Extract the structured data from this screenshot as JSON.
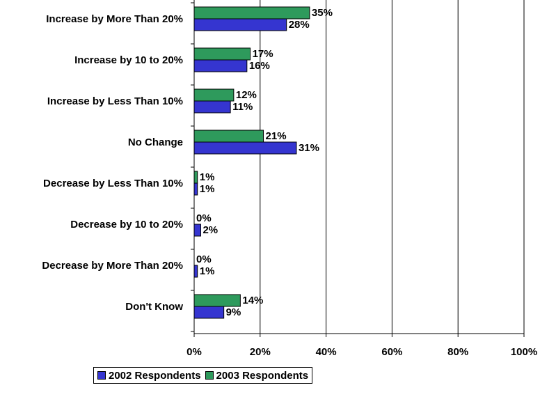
{
  "chart_data": {
    "type": "bar",
    "orientation": "horizontal",
    "title": "",
    "xlabel": "",
    "ylabel": "",
    "xlim": [
      0,
      100
    ],
    "x_tick_labels": [
      "0%",
      "20%",
      "40%",
      "60%",
      "80%",
      "100%"
    ],
    "grid": "vertical",
    "legend_position": "bottom",
    "categories": [
      "Increase by More Than 20%",
      "Increase by 10 to 20%",
      "Increase by Less Than 10%",
      "No Change",
      "Decrease by Less Than 10%",
      "Decrease by 10 to 20%",
      "Decrease by More Than 20%",
      "Don't Know"
    ],
    "series": [
      {
        "name": "2003 Respondents",
        "color": "#2e9a5c",
        "values": [
          35,
          17,
          12,
          21,
          1,
          0,
          0,
          14
        ],
        "labels": [
          "35%",
          "17%",
          "12%",
          "21%",
          "1%",
          "0%",
          "0%",
          "14%"
        ]
      },
      {
        "name": "2002 Respondents",
        "color": "#3535d0",
        "values": [
          28,
          16,
          11,
          31,
          1,
          2,
          1,
          9
        ],
        "labels": [
          "28%",
          "16%",
          "11%",
          "31%",
          "1%",
          "2%",
          "1%",
          "9%"
        ]
      }
    ]
  },
  "legend": {
    "items": [
      {
        "label": "2002 Respondents",
        "color": "#3535d0"
      },
      {
        "label": "2003 Respondents",
        "color": "#2e9a5c"
      }
    ]
  }
}
